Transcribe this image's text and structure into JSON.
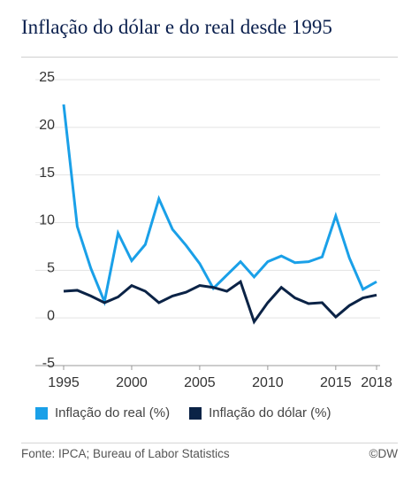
{
  "title": "Inflação do dólar e do real desde 1995",
  "source": "Fonte: IPCA; Bureau of Labor Statistics",
  "brand": "©DW",
  "colors": {
    "real": "#1aa0e8",
    "dolar": "#0b2346",
    "grid": "#e3e3e3",
    "axis": "#333333"
  },
  "chart_data": {
    "type": "line",
    "title": "Inflação do dólar e do real desde 1995",
    "xlabel": "",
    "ylabel": "",
    "ylim": [
      -5,
      25
    ],
    "yticks": [
      25,
      20,
      15,
      10,
      5,
      0,
      -5
    ],
    "xlim": [
      1995,
      2018
    ],
    "xticks": [
      1995,
      2000,
      2005,
      2010,
      2015,
      2018
    ],
    "grid": "horizontal",
    "legend_position": "bottom",
    "x": [
      1995,
      1996,
      1997,
      1998,
      1999,
      2000,
      2001,
      2002,
      2003,
      2004,
      2005,
      2006,
      2007,
      2008,
      2009,
      2010,
      2011,
      2012,
      2013,
      2014,
      2015,
      2016,
      2017,
      2018
    ],
    "series": [
      {
        "name": "Inflação do real (%)",
        "color": "#1aa0e8",
        "values": [
          22.4,
          9.6,
          5.2,
          1.7,
          8.9,
          6.0,
          7.7,
          12.5,
          9.3,
          7.6,
          5.7,
          3.1,
          4.5,
          5.9,
          4.3,
          5.9,
          6.5,
          5.8,
          5.9,
          6.4,
          10.7,
          6.3,
          3.0,
          3.8
        ]
      },
      {
        "name": "Inflação do dólar (%)",
        "color": "#0b2346",
        "values": [
          2.8,
          2.9,
          2.3,
          1.6,
          2.2,
          3.4,
          2.8,
          1.6,
          2.3,
          2.7,
          3.4,
          3.2,
          2.8,
          3.8,
          -0.4,
          1.6,
          3.2,
          2.1,
          1.5,
          1.6,
          0.1,
          1.3,
          2.1,
          2.4
        ]
      }
    ]
  }
}
